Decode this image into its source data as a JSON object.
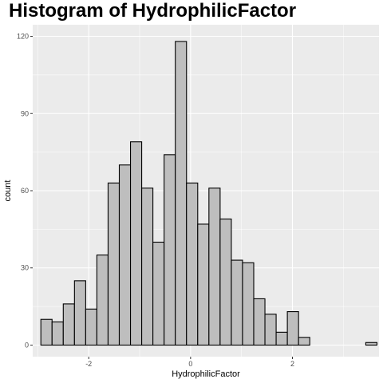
{
  "chart_data": {
    "type": "bar",
    "title": "Histogram of HydrophilicFactor",
    "xlabel": "HydrophilicFactor",
    "ylabel": "count",
    "ylim": [
      -4.5,
      124.5
    ],
    "xlim": [
      -3.1,
      3.7
    ],
    "x_ticks": [
      -2,
      0,
      2
    ],
    "x_tick_labels": [
      "-2",
      "0",
      "2"
    ],
    "y_ticks": [
      0,
      30,
      60,
      90,
      120
    ],
    "y_tick_labels": [
      "0",
      "30",
      "60",
      "90",
      "120"
    ],
    "bin_width": 0.22,
    "bin_start": -2.94,
    "counts": [
      10,
      9,
      16,
      25,
      14,
      35,
      63,
      70,
      79,
      61,
      40,
      74,
      118,
      63,
      47,
      61,
      49,
      33,
      32,
      18,
      12,
      5,
      13,
      3,
      0,
      0,
      0,
      0,
      0,
      1
    ],
    "grid": true,
    "panel_background": "#ebebeb",
    "bar_fill": "#bebebe",
    "bar_outline": "#000000",
    "grid_color": "#ffffff"
  }
}
